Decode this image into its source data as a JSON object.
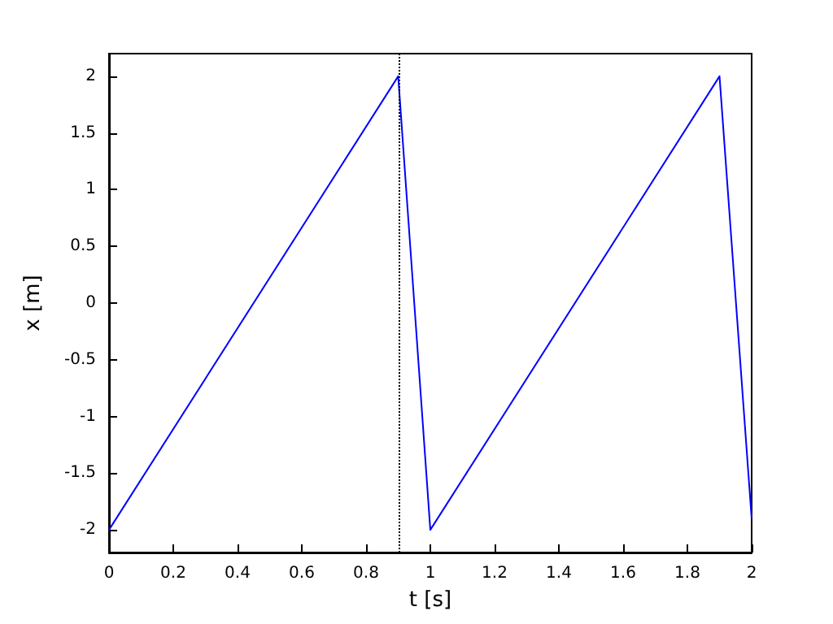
{
  "chart_data": {
    "type": "line",
    "xlabel": "t [s]",
    "ylabel": "x [m]",
    "series": [
      {
        "color": "#0000ff",
        "x": [
          0,
          0.9,
          1.0,
          1.9,
          2.0
        ],
        "values": [
          -2,
          2,
          -2,
          2,
          -1.9
        ]
      }
    ],
    "xlim": [
      0,
      2
    ],
    "xticks": [
      0,
      0.2,
      0.4,
      0.6,
      0.8,
      1,
      1.2,
      1.4,
      1.6,
      1.8,
      2
    ],
    "ylim": [
      -2.2,
      2.2
    ],
    "yticks": [
      -2,
      -1.5,
      -1,
      -0.5,
      0,
      0.5,
      1,
      1.5,
      2
    ],
    "ref_lines": [
      {
        "axis": "x",
        "value": 0.9,
        "color": "#000000",
        "line_style": "dotted"
      }
    ],
    "grid": false,
    "marker": "none",
    "line_style": "solid"
  }
}
